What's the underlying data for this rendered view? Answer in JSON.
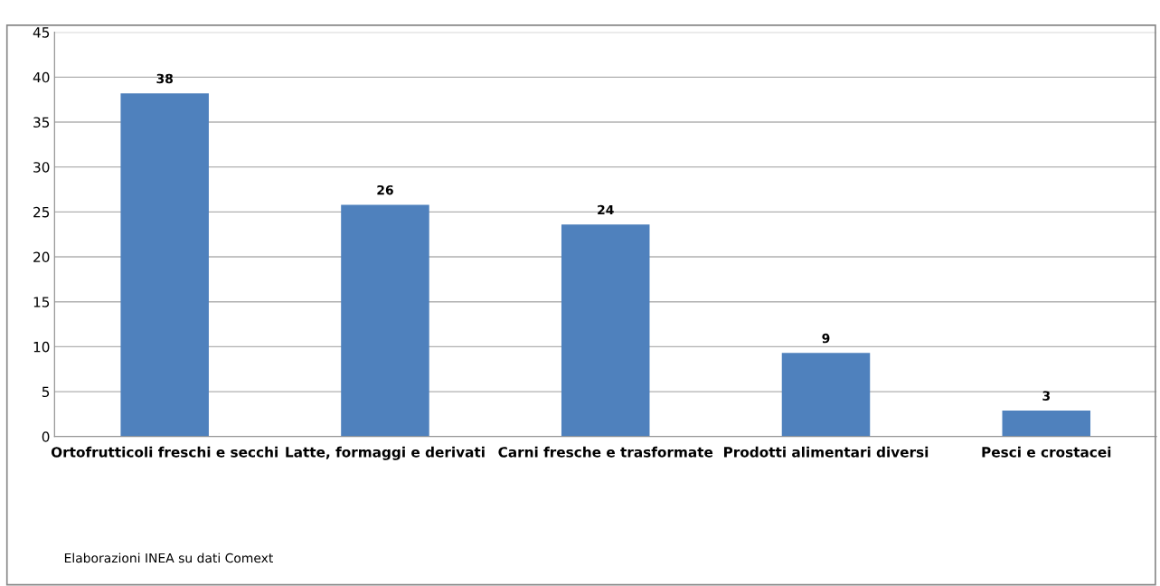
{
  "chart_data": {
    "type": "bar",
    "categories": [
      "Ortofrutticoli freschi e secchi",
      "Latte, formaggi e derivati",
      "Carni fresche e trasformate",
      "Prodotti alimentari diversi",
      "Pesci e crostacei"
    ],
    "values": [
      38.2,
      25.8,
      23.6,
      9.3,
      2.9
    ],
    "value_labels": [
      "38",
      "26",
      "24",
      "9",
      "3"
    ],
    "color": "#4f81bd",
    "ylim": [
      0,
      45
    ],
    "yticks": [
      0,
      5,
      10,
      15,
      20,
      25,
      30,
      35,
      40,
      45
    ],
    "grid": "y",
    "annotations": [
      "Elaborazioni INEA su dati Comext"
    ]
  }
}
